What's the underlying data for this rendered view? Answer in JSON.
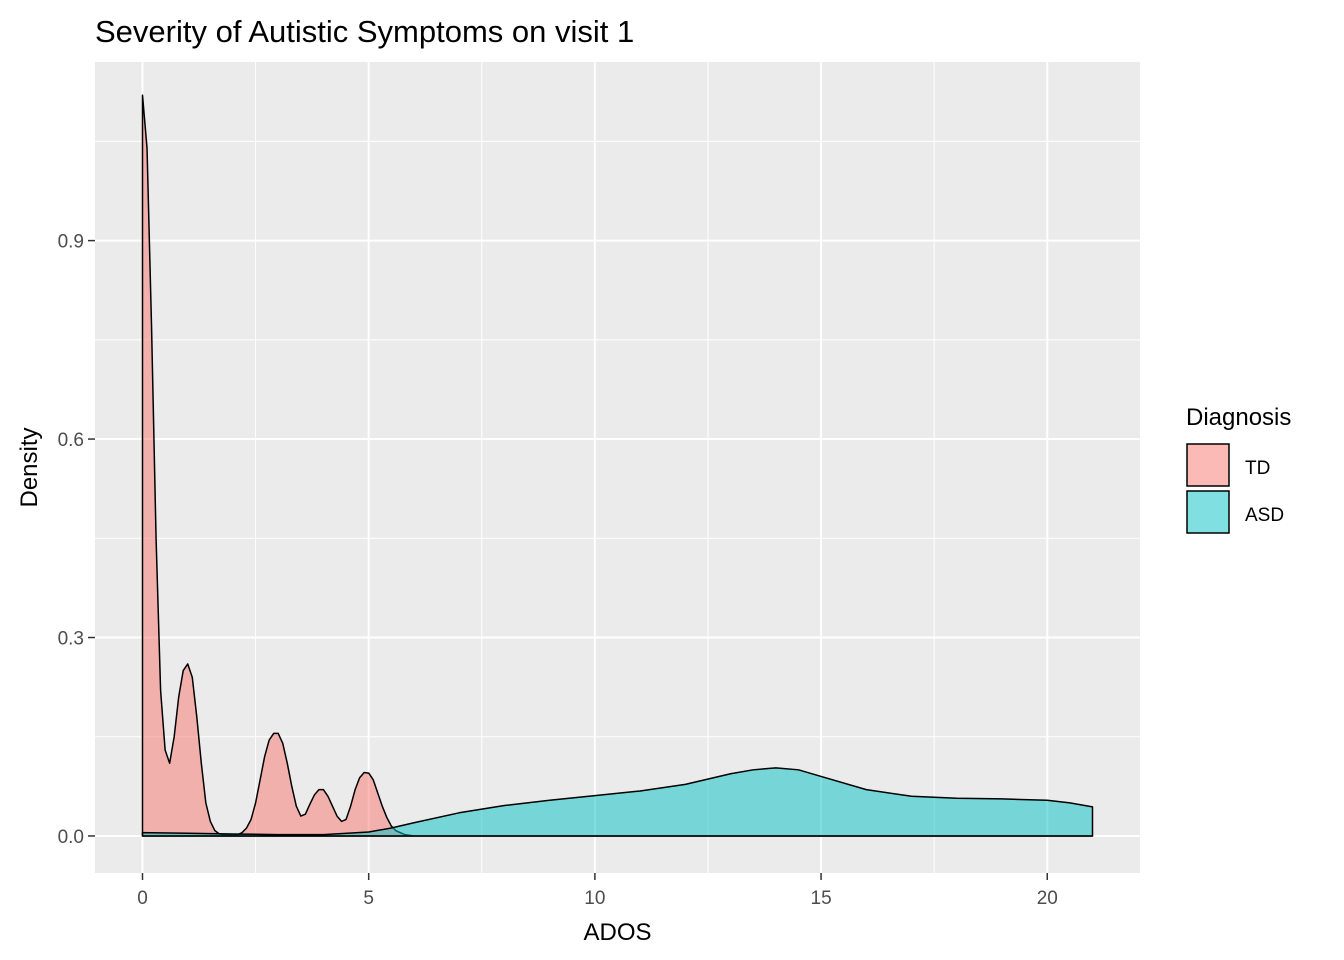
{
  "chart_data": {
    "type": "area",
    "title": "Severity of Autistic Symptoms on visit 1",
    "xlabel": "ADOS",
    "ylabel": "Density",
    "xlim": [
      -1.05,
      22.05
    ],
    "ylim": [
      -0.056,
      1.17
    ],
    "x_ticks": [
      0,
      5,
      10,
      15,
      20
    ],
    "x_tick_labels": [
      "0",
      "5",
      "10",
      "15",
      "20"
    ],
    "y_ticks": [
      0.0,
      0.3,
      0.6,
      0.9
    ],
    "y_tick_labels": [
      "0.0",
      "0.3",
      "0.6",
      "0.9"
    ],
    "grid": true,
    "legend": {
      "title": "Diagnosis",
      "position": "right"
    },
    "series": [
      {
        "name": "TD",
        "color": "#F8766D",
        "x": [
          0,
          0.1,
          0.2,
          0.3,
          0.4,
          0.5,
          0.6,
          0.7,
          0.8,
          0.9,
          1.0,
          1.1,
          1.2,
          1.3,
          1.4,
          1.5,
          1.6,
          1.7,
          1.8,
          1.9,
          2.0,
          2.1,
          2.2,
          2.3,
          2.4,
          2.5,
          2.6,
          2.7,
          2.8,
          2.9,
          3.0,
          3.1,
          3.2,
          3.3,
          3.4,
          3.5,
          3.6,
          3.7,
          3.8,
          3.9,
          4.0,
          4.1,
          4.2,
          4.3,
          4.4,
          4.5,
          4.6,
          4.7,
          4.8,
          4.9,
          5.0,
          5.1,
          5.2,
          5.3,
          5.4,
          5.5,
          5.6,
          5.8,
          6.0,
          21.0
        ],
        "values": [
          1.12,
          1.04,
          0.77,
          0.45,
          0.22,
          0.13,
          0.11,
          0.15,
          0.21,
          0.25,
          0.26,
          0.24,
          0.18,
          0.11,
          0.05,
          0.022,
          0.008,
          0.003,
          0.002,
          0.001,
          0.001,
          0.002,
          0.005,
          0.012,
          0.025,
          0.05,
          0.085,
          0.12,
          0.145,
          0.155,
          0.155,
          0.14,
          0.11,
          0.075,
          0.045,
          0.03,
          0.033,
          0.048,
          0.062,
          0.07,
          0.07,
          0.06,
          0.045,
          0.03,
          0.022,
          0.025,
          0.045,
          0.07,
          0.088,
          0.096,
          0.095,
          0.085,
          0.065,
          0.045,
          0.028,
          0.015,
          0.008,
          0.002,
          0.0,
          0.0
        ]
      },
      {
        "name": "ASD",
        "color": "#00BFC4",
        "x": [
          0,
          1,
          2,
          3,
          4,
          5,
          5.5,
          6,
          7,
          8,
          9,
          10,
          11,
          12,
          13,
          13.5,
          14,
          14.5,
          15,
          16,
          17,
          18,
          19,
          20,
          20.5,
          21
        ],
        "values": [
          0.005,
          0.004,
          0.003,
          0.002,
          0.002,
          0.006,
          0.012,
          0.02,
          0.035,
          0.046,
          0.054,
          0.061,
          0.068,
          0.078,
          0.094,
          0.1,
          0.103,
          0.1,
          0.09,
          0.07,
          0.06,
          0.057,
          0.056,
          0.054,
          0.05,
          0.044
        ]
      }
    ]
  }
}
